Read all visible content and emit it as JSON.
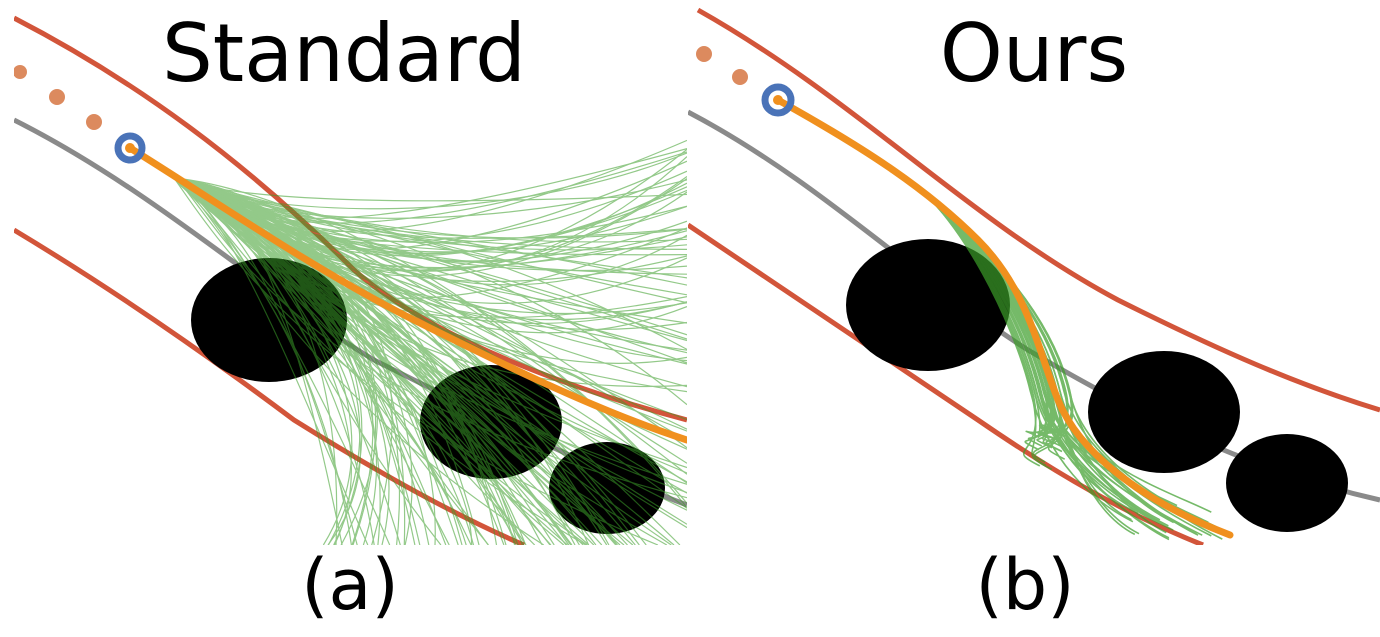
{
  "panels": [
    {
      "title": "Standard",
      "caption": "(a)"
    },
    {
      "title": "Ours",
      "caption": "(b)"
    }
  ],
  "colors": {
    "road_boundary": "#d2553a",
    "centerline": "#8a8a8a",
    "history_dots": "#dc8a5e",
    "ego_marker": "#4a73b8",
    "planned_path": "#f0901e",
    "sampled_trajectories": "#3c9e2a",
    "obstacles": "#000000"
  }
}
